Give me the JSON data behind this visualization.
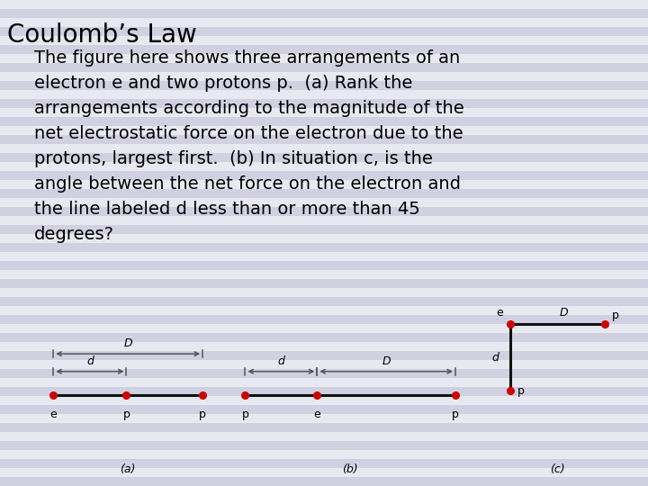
{
  "title": "Coulomb’s Law",
  "title_fontsize": 20,
  "body_lines": [
    "The figure here shows three arrangements of an",
    "electron e and two protons p.  (a) Rank the",
    "arrangements according to the magnitude of the",
    "net electrostatic force on the electron due to the",
    "protons, largest first.  (b) In situation c, is the",
    "angle between the net force on the electron and",
    "the line labeled d less than or more than 45",
    "degrees?"
  ],
  "body_fontsize": 14,
  "bg_light": "#e8e8f0",
  "bg_dark": "#d0d0e0",
  "stripe_count": 54,
  "text_color": "#000000",
  "dot_color": "#cc0000",
  "line_dark": "#111111",
  "line_gray": "#999999",
  "arrow_color": "#555555",
  "label_fontsize": 9,
  "italic_fontsize": 9
}
